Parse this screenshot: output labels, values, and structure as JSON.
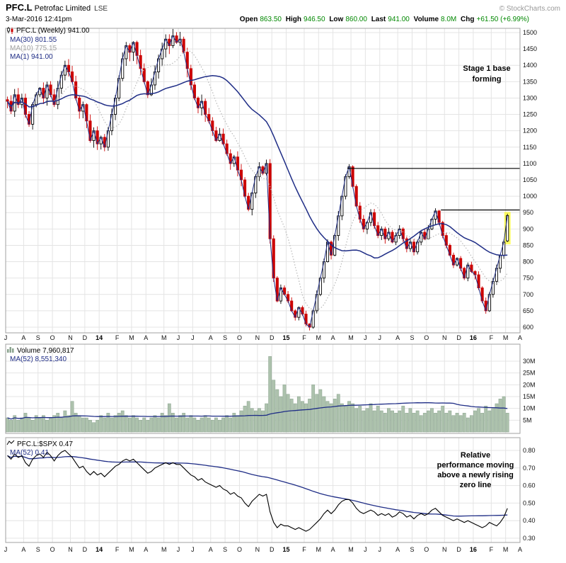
{
  "header": {
    "symbol": "PFC.L",
    "company": "Petrofac Limited",
    "exchange": "LSE",
    "datetime": "3-Mar-2016 12:41pm",
    "credit": "© StockCharts.com",
    "quote": {
      "open_label": "Open",
      "open": "863.50",
      "high_label": "High",
      "high": "946.50",
      "low_label": "Low",
      "low": "860.00",
      "last_label": "Last",
      "last": "941.00",
      "volume_label": "Volume",
      "volume": "8.0M",
      "chg_label": "Chg",
      "chg": "+61.50 (+6.99%)"
    }
  },
  "main_panel": {
    "legend": {
      "series": "PFC.L (Weekly) 941.00",
      "ma30": "MA(30) 801.55",
      "ma10": "MA(10) 775.15",
      "ma1": "MA(1) 941.00"
    },
    "annotation": "Stage 1 base forming"
  },
  "volume_panel": {
    "legend": {
      "series": "Volume 7,960,817",
      "ma52": "MA(52) 8,551,340"
    }
  },
  "rs_panel": {
    "legend": {
      "series": "PFC.L:$SPX 0.47",
      "ma52": "MA(52) 0.41"
    },
    "annotation": "Relative performance moving above a newly rising zero line"
  },
  "colors": {
    "candle_up_stroke": "#000000",
    "candle_up_fill": "#ffffff",
    "candle_down": "#cc0000",
    "ma_navy": "#1f2d86",
    "ma_gray": "#b8b8b8",
    "volume_bar_fill": "#adc2ad",
    "volume_bar_stroke": "#8aa38e",
    "rs_line": "#000000",
    "grid": "#e4e4e4",
    "border": "#a0a0a0",
    "highlight": "#ffff00",
    "quote_value_green": "#008800"
  },
  "chart_data": [
    {
      "type": "candlestick",
      "panel": "price",
      "title": "PFC.L (Weekly)",
      "timeframe": "weekly",
      "last_close": 941.0,
      "x_axis_labels": [
        "J",
        "A",
        "S",
        "O",
        "N",
        "D",
        "14",
        "F",
        "M",
        "A",
        "M",
        "J",
        "J",
        "A",
        "S",
        "O",
        "N",
        "D",
        "15",
        "F",
        "M",
        "A",
        "M",
        "J",
        "J",
        "A",
        "S",
        "O",
        "N",
        "D",
        "16",
        "F",
        "M",
        "A"
      ],
      "month_slots": [
        5,
        4,
        4,
        5,
        4,
        4,
        5,
        4,
        4,
        5,
        4,
        4,
        5,
        4,
        4,
        5,
        4,
        4,
        5,
        4,
        4,
        5,
        4,
        4,
        5,
        4,
        4,
        5,
        4,
        4,
        5,
        4,
        4,
        0
      ],
      "total_slots": 143,
      "close": [
        1290,
        1260,
        1310,
        1280,
        1300,
        1250,
        1220,
        1280,
        1310,
        1330,
        1300,
        1340,
        1310,
        1280,
        1330,
        1370,
        1400,
        1380,
        1350,
        1300,
        1260,
        1280,
        1230,
        1170,
        1200,
        1160,
        1180,
        1150,
        1200,
        1250,
        1300,
        1360,
        1420,
        1460,
        1440,
        1470,
        1430,
        1390,
        1350,
        1310,
        1340,
        1380,
        1420,
        1450,
        1480,
        1460,
        1490,
        1470,
        1480,
        1440,
        1390,
        1340,
        1300,
        1270,
        1290,
        1250,
        1230,
        1200,
        1170,
        1190,
        1160,
        1130,
        1100,
        1120,
        1080,
        1050,
        1000,
        960,
        1010,
        1060,
        1090,
        1070,
        1100,
        870,
        750,
        680,
        720,
        700,
        680,
        650,
        630,
        660,
        640,
        610,
        600,
        650,
        700,
        750,
        800,
        860,
        820,
        880,
        940,
        1000,
        1060,
        1090,
        1030,
        970,
        930,
        900,
        920,
        950,
        910,
        880,
        900,
        870,
        890,
        860,
        880,
        900,
        870,
        840,
        860,
        830,
        860,
        890,
        870,
        900,
        930,
        955,
        920,
        880,
        850,
        820,
        790,
        810,
        780,
        750,
        790,
        770,
        760,
        720,
        680,
        650,
        700,
        740,
        780,
        820,
        860,
        941
      ],
      "last_candle_ohlc": {
        "open": 863.5,
        "high": 946.5,
        "low": 860.0,
        "close": 941.0
      },
      "overlays": [
        {
          "name": "MA(30)",
          "period": 30,
          "last": 801.55
        },
        {
          "name": "MA(10)",
          "period": 10,
          "last": 775.15
        },
        {
          "name": "MA(1)",
          "period": 1,
          "last": 941.0
        }
      ],
      "ylim": [
        580,
        1520
      ],
      "y_ticks": [
        600,
        650,
        700,
        750,
        800,
        850,
        900,
        950,
        1000,
        1050,
        1100,
        1150,
        1200,
        1250,
        1300,
        1350,
        1400,
        1450,
        1500
      ],
      "grid": true,
      "annotation_lines": [
        "Stage 1 base",
        "forming"
      ],
      "trendlines": [
        {
          "price": 1085,
          "from_slot": 95,
          "to_slot": 143
        },
        {
          "price": 958,
          "from_slot": 121,
          "to_slot": 143
        }
      ],
      "highlight_last_candle": {
        "slot": 139,
        "price_top": 952,
        "price_bottom": 853
      }
    },
    {
      "type": "bar",
      "panel": "volume",
      "title": "Volume",
      "last_value": "7,960,817",
      "values_millions": [
        6,
        5,
        7,
        5,
        6,
        8,
        6,
        5,
        7,
        6,
        7,
        5,
        6,
        7,
        8,
        6,
        9,
        7,
        13,
        8,
        7,
        6,
        6,
        5,
        4,
        5,
        7,
        6,
        8,
        6,
        7,
        8,
        9,
        7,
        6,
        7,
        6,
        5,
        6,
        5,
        6,
        7,
        6,
        8,
        7,
        12,
        8,
        6,
        7,
        8,
        6,
        7,
        6,
        5,
        6,
        7,
        6,
        5,
        6,
        5,
        6,
        7,
        6,
        8,
        7,
        9,
        11,
        13,
        10,
        9,
        10,
        9,
        12,
        32,
        22,
        18,
        15,
        20,
        16,
        14,
        12,
        15,
        13,
        12,
        14,
        20,
        16,
        18,
        15,
        13,
        12,
        14,
        16,
        12,
        11,
        13,
        12,
        10,
        11,
        9,
        10,
        12,
        9,
        11,
        9,
        8,
        10,
        9,
        8,
        9,
        11,
        8,
        10,
        8,
        9,
        7,
        8,
        9,
        10,
        8,
        9,
        11,
        8,
        9,
        7,
        8,
        7,
        8,
        6,
        7,
        9,
        10,
        8,
        11,
        9,
        10,
        12,
        14,
        15,
        8
      ],
      "overlays": [
        {
          "name": "MA(52)",
          "period": 52,
          "last": "8,551,340"
        }
      ],
      "y_ticks_millions": [
        5,
        10,
        15,
        20,
        25,
        30
      ],
      "ylim_millions": [
        0,
        34
      ]
    },
    {
      "type": "line",
      "panel": "ratio",
      "title": "PFC.L:$SPX",
      "last_value": 0.47,
      "values": [
        0.77,
        0.75,
        0.78,
        0.76,
        0.77,
        0.73,
        0.71,
        0.75,
        0.77,
        0.78,
        0.76,
        0.79,
        0.77,
        0.74,
        0.77,
        0.79,
        0.8,
        0.78,
        0.76,
        0.73,
        0.7,
        0.71,
        0.68,
        0.66,
        0.68,
        0.66,
        0.67,
        0.65,
        0.67,
        0.69,
        0.71,
        0.72,
        0.74,
        0.75,
        0.74,
        0.75,
        0.73,
        0.71,
        0.69,
        0.67,
        0.68,
        0.7,
        0.71,
        0.72,
        0.73,
        0.72,
        0.73,
        0.72,
        0.72,
        0.7,
        0.68,
        0.66,
        0.65,
        0.63,
        0.64,
        0.62,
        0.61,
        0.6,
        0.59,
        0.6,
        0.58,
        0.57,
        0.55,
        0.56,
        0.54,
        0.53,
        0.5,
        0.48,
        0.51,
        0.53,
        0.55,
        0.54,
        0.55,
        0.45,
        0.39,
        0.36,
        0.38,
        0.37,
        0.37,
        0.36,
        0.35,
        0.36,
        0.35,
        0.34,
        0.35,
        0.37,
        0.39,
        0.41,
        0.44,
        0.46,
        0.44,
        0.46,
        0.49,
        0.51,
        0.52,
        0.52,
        0.5,
        0.47,
        0.45,
        0.44,
        0.45,
        0.46,
        0.45,
        0.43,
        0.44,
        0.43,
        0.44,
        0.42,
        0.43,
        0.45,
        0.44,
        0.42,
        0.43,
        0.41,
        0.43,
        0.44,
        0.43,
        0.44,
        0.46,
        0.47,
        0.45,
        0.43,
        0.42,
        0.41,
        0.4,
        0.41,
        0.4,
        0.39,
        0.4,
        0.39,
        0.38,
        0.37,
        0.36,
        0.37,
        0.39,
        0.38,
        0.37,
        0.39,
        0.42,
        0.47
      ],
      "overlays": [
        {
          "name": "MA(52)",
          "period": 52,
          "last": 0.41
        }
      ],
      "y_ticks": [
        0.3,
        0.4,
        0.5,
        0.6,
        0.7,
        0.8
      ],
      "ylim": [
        0.28,
        0.84
      ],
      "annotation_lines": [
        "Relative",
        "performance moving",
        "above a newly rising",
        "zero line"
      ]
    }
  ]
}
